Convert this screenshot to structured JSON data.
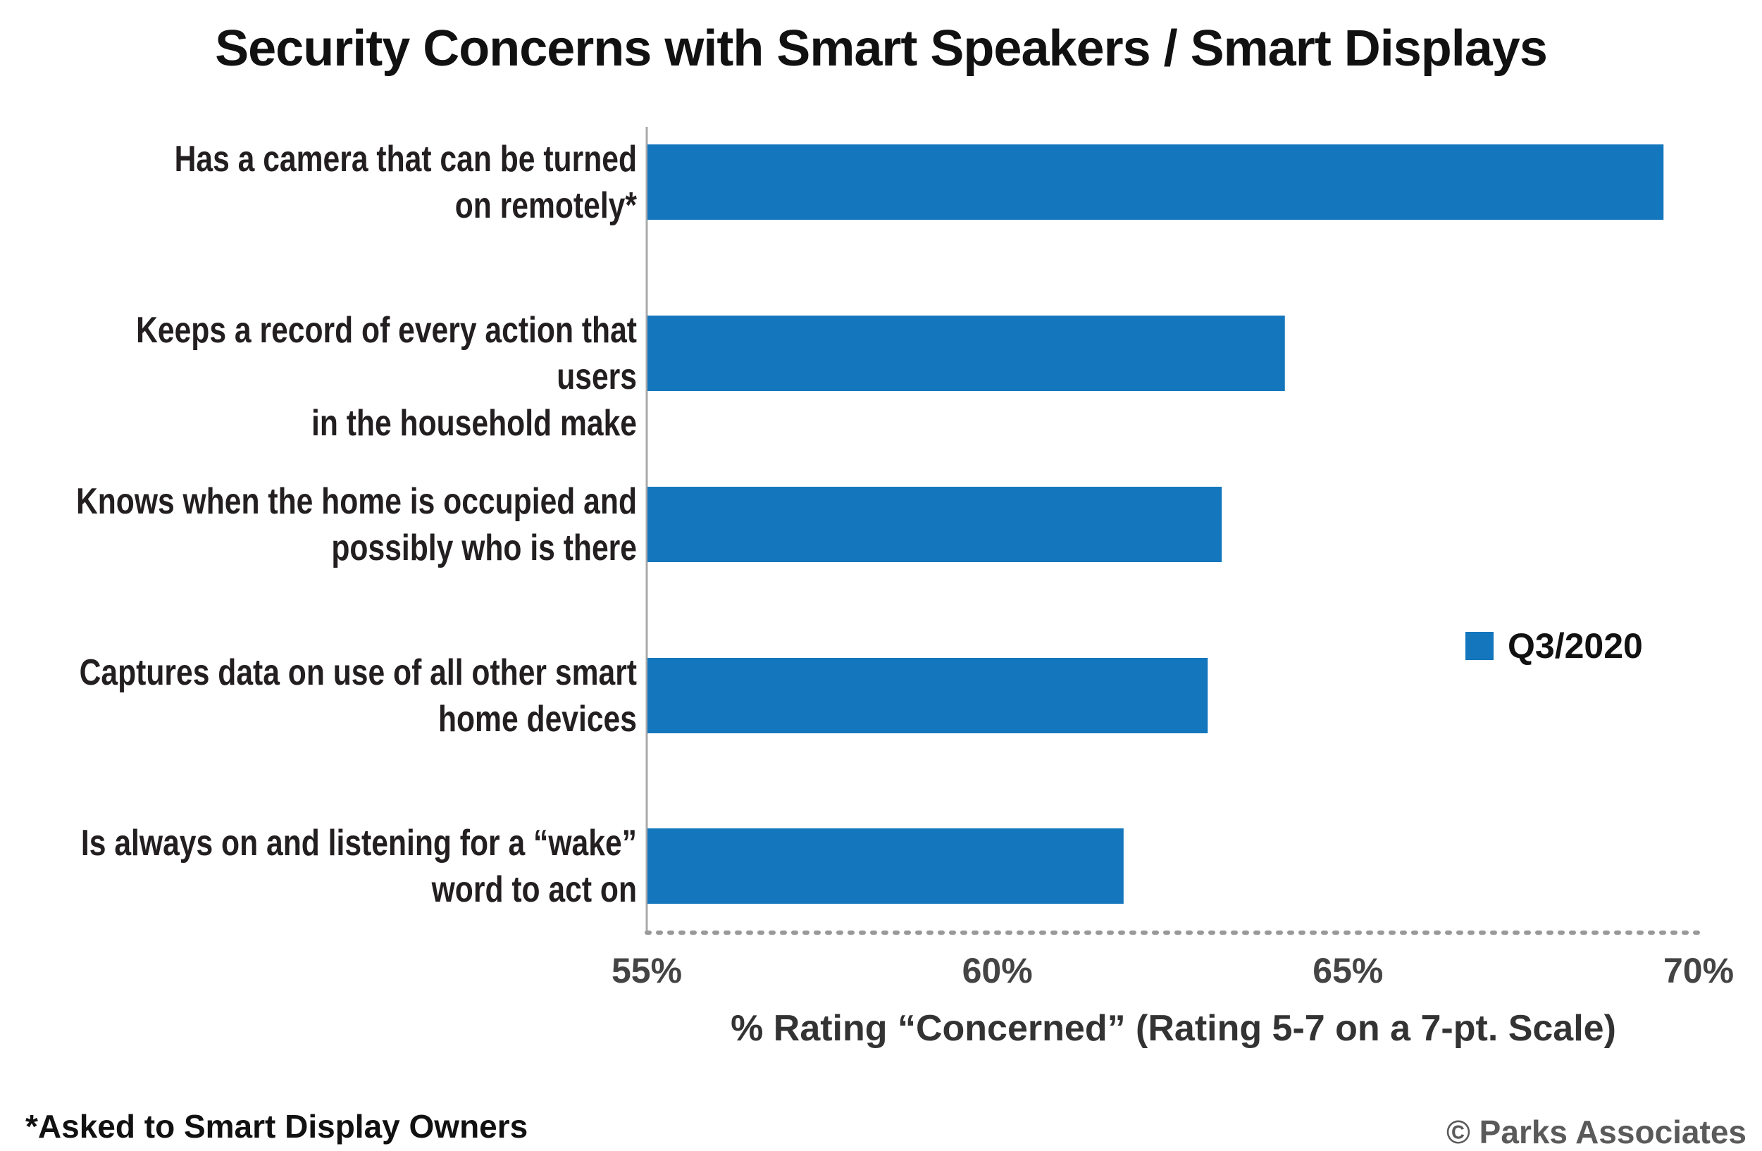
{
  "chart_data": {
    "type": "bar",
    "orientation": "horizontal",
    "title": "Security Concerns with Smart Speakers / Smart Displays",
    "categories": [
      [
        "Has a camera that can be turned",
        "on remotely*"
      ],
      [
        "Keeps a record of every action that users",
        "in the household make"
      ],
      [
        "Knows when the home is occupied and",
        "possibly who is there"
      ],
      [
        "Captures data on use of all other smart",
        "home devices"
      ],
      [
        "Is always on and listening for a “wake”",
        "word to act on"
      ]
    ],
    "series": [
      {
        "name": "Q3/2020",
        "values": [
          69.5,
          64.1,
          63.2,
          63.0,
          61.8
        ],
        "color": "#1476bd"
      }
    ],
    "xlim": [
      55,
      70
    ],
    "xticks": [
      "55%",
      "60%",
      "65%",
      "70%"
    ],
    "xlabel": "% Rating “Concerned” (Rating 5-7 on a 7-pt. Scale)",
    "legend_position": "right",
    "grid": false
  },
  "footnote": "*Asked to Smart Display Owners",
  "copyright": "© Parks Associates"
}
